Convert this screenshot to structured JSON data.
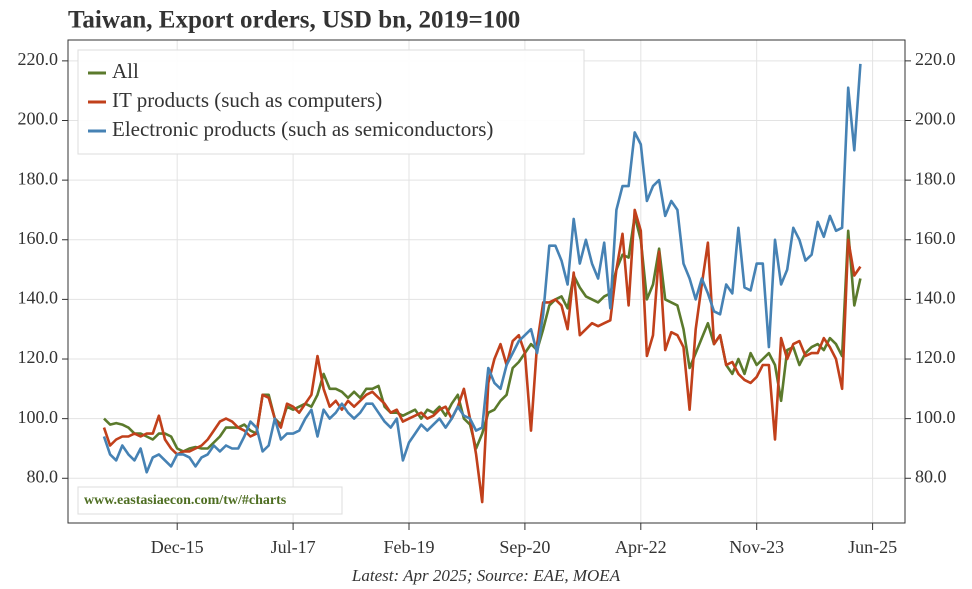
{
  "chart_data": {
    "type": "line",
    "title": "Taiwan, Export orders, USD bn, 2019=100",
    "footnote": "Latest: Apr 2025; Source: EAE, MOEA",
    "watermark": "www.eastasiaecon.com/tw/#charts",
    "categories": [
      null,
      null,
      null,
      null,
      null,
      null,
      null,
      null,
      null,
      null,
      null,
      null,
      "Dec-15",
      null,
      null,
      null,
      null,
      null,
      null,
      null,
      null,
      null,
      null,
      null,
      null,
      null,
      null,
      null,
      null,
      null,
      null,
      "Jul-17",
      null,
      null,
      null,
      null,
      null,
      null,
      null,
      null,
      null,
      null,
      null,
      null,
      null,
      null,
      null,
      null,
      null,
      null,
      "Feb-19",
      null,
      null,
      null,
      null,
      null,
      null,
      null,
      null,
      null,
      null,
      null,
      null,
      null,
      null,
      null,
      null,
      null,
      null,
      "Sep-20",
      null,
      null,
      null,
      null,
      null,
      null,
      null,
      null,
      null,
      null,
      null,
      null,
      null,
      null,
      null,
      null,
      null,
      null,
      "Apr-22",
      null,
      null,
      null,
      null,
      null,
      null,
      null,
      null,
      null,
      null,
      null,
      null,
      null,
      null,
      null,
      null,
      null,
      null,
      "Nov-23",
      null,
      null,
      null,
      null,
      null,
      null,
      null,
      null,
      null,
      null,
      null,
      null,
      null,
      null,
      null,
      null,
      null,
      null,
      "Jun-25"
    ],
    "series": [
      {
        "name": "All",
        "color": "#5b7a2c",
        "values": [
          100,
          98,
          98.5,
          98,
          97,
          95,
          95,
          94,
          93,
          95,
          95,
          94,
          90,
          89,
          90,
          90.5,
          90,
          90,
          92,
          94,
          97,
          97,
          97,
          98,
          96,
          95,
          108,
          108,
          100,
          98,
          104,
          103,
          104,
          105,
          104,
          108,
          115,
          110,
          110,
          109,
          107,
          109,
          107,
          110,
          110,
          111,
          104,
          102,
          102,
          101,
          102,
          103,
          100,
          103,
          102,
          104,
          101,
          105,
          108,
          100,
          98,
          90,
          95,
          102,
          103,
          106,
          108,
          117,
          119,
          122,
          125,
          123,
          130,
          138,
          140,
          141,
          137,
          148,
          144,
          141,
          140,
          139,
          141,
          142,
          150,
          155,
          154,
          168,
          160,
          140,
          145,
          157,
          140,
          139,
          138,
          130,
          117,
          122,
          127,
          132,
          125,
          128,
          118,
          115,
          120,
          115,
          122,
          118,
          120,
          122,
          118,
          106,
          123,
          124,
          118,
          122,
          124,
          125,
          123,
          127,
          125,
          121,
          163,
          138,
          147,
          null,
          null
        ]
      },
      {
        "name": "IT products (such as computers)",
        "color": "#c1401b",
        "values": [
          97,
          91,
          93,
          94,
          94,
          95,
          94,
          95,
          95,
          101,
          93,
          90,
          88,
          89,
          89,
          90,
          91,
          93,
          96,
          99,
          100,
          99,
          97,
          96,
          94,
          95,
          108,
          107,
          100,
          97,
          105,
          104,
          102,
          105,
          108,
          121,
          110,
          104,
          106,
          103,
          106,
          104,
          106,
          108,
          109,
          107,
          105,
          102,
          103,
          99,
          100,
          101,
          102,
          100,
          101,
          103,
          104,
          100,
          104,
          110,
          100,
          88,
          72,
          112,
          120,
          125,
          118,
          126,
          128,
          122,
          96,
          125,
          139,
          139,
          140,
          138,
          130,
          149,
          128,
          130,
          132,
          131,
          132,
          133,
          150,
          162,
          138,
          170,
          163,
          121,
          128,
          156,
          123,
          129,
          128,
          124,
          103,
          130,
          145,
          159,
          125,
          128,
          118,
          119,
          115,
          113,
          112,
          114,
          118,
          118,
          93,
          127,
          120,
          125,
          126,
          121,
          122,
          122,
          127,
          124,
          120,
          110,
          160,
          148,
          151,
          null,
          null
        ]
      },
      {
        "name": "Electronic products (such as semiconductors)",
        "color": "#4682b4",
        "values": [
          94,
          88,
          86,
          91,
          88,
          86,
          90,
          82,
          87,
          88,
          86,
          84,
          88,
          88,
          87,
          84,
          87,
          88,
          91,
          89,
          91,
          90,
          90,
          94,
          99,
          97,
          89,
          91,
          100,
          93,
          95,
          95,
          96,
          100,
          103,
          94,
          103,
          100,
          102,
          105,
          102,
          100,
          102,
          105,
          105,
          102,
          99,
          97,
          100,
          86,
          92,
          95,
          98,
          96,
          98,
          100,
          97,
          100,
          104,
          101,
          100,
          96,
          97,
          117,
          112,
          110,
          118,
          122,
          126,
          128,
          130,
          122,
          135,
          158,
          158,
          153,
          145,
          167,
          152,
          160,
          152,
          147,
          159,
          137,
          170,
          178,
          178,
          196,
          192,
          173,
          178,
          180,
          168,
          173,
          170,
          152,
          147,
          140,
          147,
          142,
          136,
          135,
          145,
          142,
          164,
          144,
          143,
          152,
          152,
          124,
          160,
          145,
          150,
          164,
          160,
          153,
          155,
          166,
          161,
          168,
          163,
          164,
          211,
          190,
          219,
          null,
          null
        ]
      }
    ],
    "ylim": [
      65,
      227
    ],
    "yticks": [
      {
        "value": 80,
        "label": "80.0"
      },
      {
        "value": 100,
        "label": "100.0"
      },
      {
        "value": 120,
        "label": "120.0"
      },
      {
        "value": 140,
        "label": "140.0"
      },
      {
        "value": 160,
        "label": "160.0"
      },
      {
        "value": 180,
        "label": "180.0"
      },
      {
        "value": 200,
        "label": "200.0"
      },
      {
        "value": 220,
        "label": "220.0"
      }
    ],
    "grid": true,
    "legend": "upper left"
  }
}
